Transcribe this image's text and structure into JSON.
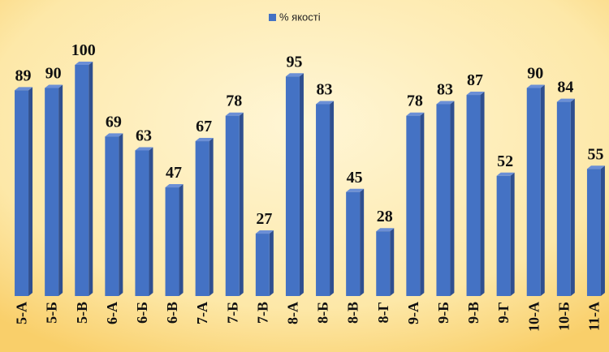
{
  "chart_data": {
    "type": "bar",
    "categories": [
      "5-А",
      "5-Б",
      "5-В",
      "6-А",
      "6-Б",
      "6-В",
      "7-А",
      "7-Б",
      "7-В",
      "8-А",
      "8-Б",
      "8-В",
      "8-Г",
      "9-А",
      "9-Б",
      "9-В",
      "9-Г",
      "10-А",
      "10-Б",
      "11-А"
    ],
    "series": [
      {
        "name": "% якості",
        "color": "#4472c4",
        "values": [
          89,
          90,
          100,
          69,
          63,
          47,
          67,
          78,
          27,
          95,
          83,
          45,
          28,
          78,
          83,
          87,
          52,
          90,
          84,
          55
        ]
      }
    ],
    "ylim": [
      0,
      100
    ],
    "legend": "top",
    "data_labels": true
  }
}
